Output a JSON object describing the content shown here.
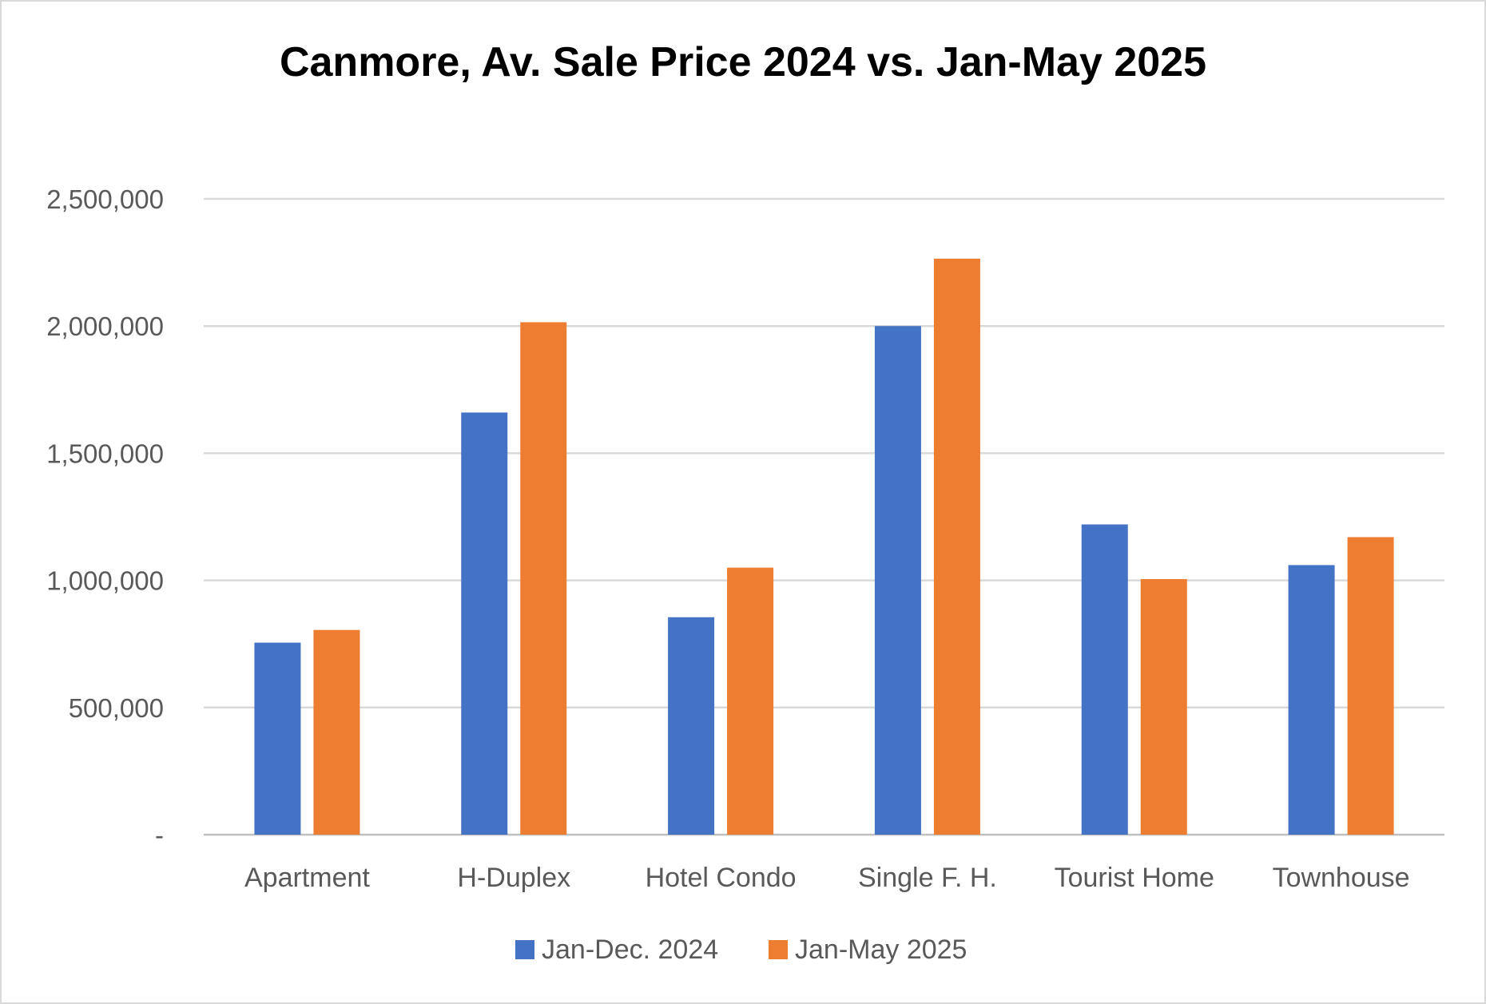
{
  "chart_data": {
    "type": "bar",
    "title": "Canmore, Av. Sale Price 2024 vs. Jan-May 2025",
    "xlabel": "",
    "ylabel": "",
    "categories": [
      "Apartment",
      "H-Duplex",
      "Hotel Condo",
      "Single F. H.",
      "Tourist Home",
      "Townhouse"
    ],
    "series": [
      {
        "name": "Jan-Dec. 2024",
        "color": "#4472C4",
        "values": [
          755000,
          1660000,
          855000,
          2000000,
          1220000,
          1060000
        ]
      },
      {
        "name": "Jan-May 2025",
        "color": "#ED7D31",
        "values": [
          805000,
          2015000,
          1050000,
          2265000,
          1005000,
          1170000
        ]
      }
    ],
    "ylim": [
      0,
      2500000
    ],
    "yticks": [
      0,
      500000,
      1000000,
      1500000,
      2000000,
      2500000
    ],
    "ytick_labels": [
      "-",
      "500,000",
      "1,000,000",
      "1,500,000",
      "2,000,000",
      "2,500,000"
    ],
    "grid": true,
    "legend_position": "bottom"
  }
}
